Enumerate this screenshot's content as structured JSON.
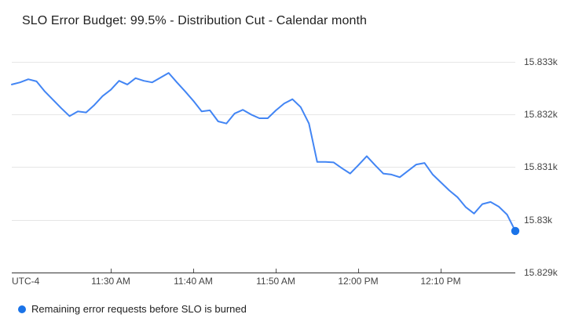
{
  "chart_data": {
    "type": "line",
    "title": "SLO Error Budget: 99.5% - Distribution Cut - Calendar month",
    "grid": true,
    "legend_position": "bottom-left",
    "x": [
      "11:18 AM",
      "11:19 AM",
      "11:20 AM",
      "11:21 AM",
      "11:22 AM",
      "11:23 AM",
      "11:24 AM",
      "11:25 AM",
      "11:26 AM",
      "11:27 AM",
      "11:28 AM",
      "11:29 AM",
      "11:30 AM",
      "11:31 AM",
      "11:32 AM",
      "11:33 AM",
      "11:34 AM",
      "11:35 AM",
      "11:36 AM",
      "11:37 AM",
      "11:38 AM",
      "11:39 AM",
      "11:40 AM",
      "11:41 AM",
      "11:42 AM",
      "11:43 AM",
      "11:44 AM",
      "11:45 AM",
      "11:46 AM",
      "11:47 AM",
      "11:48 AM",
      "11:49 AM",
      "11:50 AM",
      "11:51 AM",
      "11:52 AM",
      "11:53 AM",
      "11:54 AM",
      "11:55 AM",
      "11:56 AM",
      "11:57 AM",
      "11:58 AM",
      "11:59 AM",
      "12:00 PM",
      "12:01 PM",
      "12:02 PM",
      "12:03 PM",
      "12:04 PM",
      "12:05 PM",
      "12:06 PM",
      "12:07 PM",
      "12:08 PM",
      "12:09 PM",
      "12:10 PM",
      "12:11 PM",
      "12:12 PM",
      "12:13 PM",
      "12:14 PM",
      "12:15 PM",
      "12:16 PM",
      "12:17 PM",
      "12:18 PM",
      "12:19 PM"
    ],
    "series": [
      {
        "name": "Remaining error requests before SLO is burned",
        "color": "#4285f4",
        "point_color": "#1a73e8",
        "values": [
          15832.57,
          15832.61,
          15832.67,
          15832.63,
          15832.44,
          15832.28,
          15832.12,
          15831.97,
          15832.06,
          15832.04,
          15832.18,
          15832.35,
          15832.47,
          15832.64,
          15832.57,
          15832.69,
          15832.64,
          15832.61,
          15832.7,
          15832.79,
          15832.61,
          15832.44,
          15832.26,
          15832.06,
          15832.08,
          15831.87,
          15831.83,
          15832.02,
          15832.09,
          15832.0,
          15831.93,
          15831.93,
          15832.08,
          15832.21,
          15832.29,
          15832.14,
          15831.83,
          15831.1,
          15831.1,
          15831.09,
          15830.98,
          15830.88,
          15831.04,
          15831.21,
          15831.04,
          15830.88,
          15830.86,
          15830.81,
          15830.93,
          15831.05,
          15831.08,
          15830.86,
          15830.71,
          15830.56,
          15830.43,
          15830.24,
          15830.12,
          15830.3,
          15830.34,
          15830.25,
          15830.1,
          15829.79
        ]
      }
    ],
    "x_axis": {
      "timezone_label": "UTC-4",
      "tick_labels": [
        "11:30 AM",
        "11:40 AM",
        "11:50 AM",
        "12:00 PM",
        "12:10 PM"
      ]
    },
    "y_axis": {
      "tick_labels": [
        "15.833k",
        "15.832k",
        "15.831k",
        "15.83k",
        "15.829k"
      ],
      "tick_values": [
        15833,
        15832,
        15831,
        15830,
        15829
      ],
      "range": [
        15829,
        15833.1
      ],
      "unit": "requests"
    }
  },
  "legend": {
    "label": "Remaining error requests before SLO is burned",
    "marker_color": "#1a73e8"
  },
  "colors": {
    "line": "#4285f4",
    "end_point": "#1a73e8",
    "gridline": "#e6e6e6",
    "axis": "#333333"
  }
}
